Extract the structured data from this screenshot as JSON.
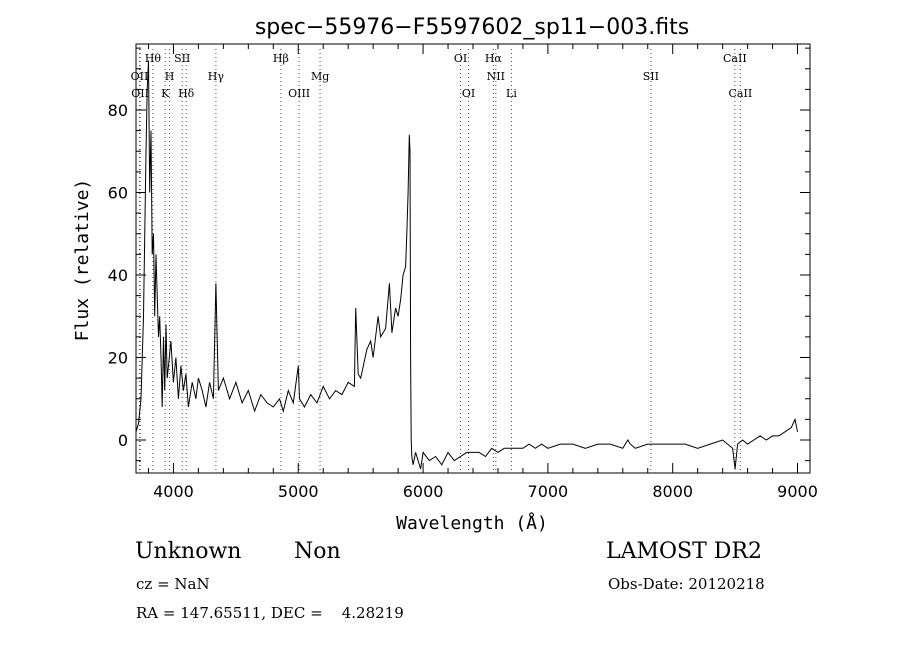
{
  "chart_data": {
    "type": "line",
    "title": "spec−55976−F5597602_sp11−003.fits",
    "xlabel": "Wavelength (Å)",
    "ylabel": "Flux (relative)",
    "xlim": [
      3700,
      9100
    ],
    "ylim": [
      -8,
      96
    ],
    "xticks": [
      4000,
      5000,
      6000,
      7000,
      8000,
      9000
    ],
    "yticks": [
      0,
      20,
      40,
      60,
      80
    ],
    "line_color": "#000000",
    "marker_color": "#ff0000",
    "series": [
      {
        "x": [
          3700,
          3720,
          3740,
          3760,
          3780,
          3790,
          3800,
          3810,
          3820,
          3830,
          3840,
          3850,
          3860,
          3870,
          3880,
          3890,
          3900,
          3910,
          3920,
          3930,
          3940,
          3950,
          3960,
          3980,
          4000,
          4020,
          4040,
          4060,
          4080,
          4100,
          4120,
          4150,
          4180,
          4200,
          4230,
          4260,
          4290,
          4320,
          4340,
          4360,
          4400,
          4450,
          4500,
          4550,
          4600,
          4650,
          4700,
          4750,
          4800,
          4850,
          4880,
          4920,
          4960,
          5000,
          5010,
          5050,
          5100,
          5150,
          5200,
          5250,
          5300,
          5350,
          5400,
          5450,
          5460,
          5480,
          5500,
          5550,
          5580,
          5600,
          5640,
          5660,
          5700,
          5730,
          5750,
          5780,
          5800,
          5820,
          5840,
          5860,
          5870,
          5880,
          5890,
          5895,
          5900,
          5905,
          5910,
          5920,
          5940,
          5960,
          5980,
          6000,
          6050,
          6100,
          6150,
          6200,
          6250,
          6300,
          6350,
          6400,
          6450,
          6500,
          6550,
          6600,
          6650,
          6700,
          6750,
          6800,
          6850,
          6900,
          6950,
          7000,
          7100,
          7200,
          7300,
          7400,
          7500,
          7600,
          7640,
          7660,
          7700,
          7800,
          7900,
          8000,
          8100,
          8200,
          8300,
          8400,
          8480,
          8500,
          8520,
          8560,
          8600,
          8650,
          8700,
          8750,
          8800,
          8850,
          8900,
          8950,
          8980,
          9000
        ],
        "y": [
          2,
          4,
          10,
          30,
          70,
          85,
          92,
          60,
          75,
          45,
          50,
          30,
          45,
          35,
          25,
          30,
          20,
          8,
          25,
          12,
          28,
          15,
          18,
          24,
          14,
          20,
          10,
          18,
          12,
          16,
          8,
          14,
          10,
          15,
          12,
          8,
          14,
          10,
          38,
          12,
          15,
          10,
          14,
          9,
          12,
          7,
          11,
          9,
          8,
          10,
          7,
          12,
          9,
          18,
          10,
          8,
          11,
          9,
          13,
          10,
          12,
          11,
          14,
          13,
          32,
          16,
          15,
          22,
          24,
          20,
          30,
          25,
          27,
          38,
          26,
          32,
          30,
          34,
          40,
          42,
          50,
          60,
          74,
          70,
          20,
          0,
          -4,
          -6,
          -3,
          -5,
          -7,
          -3,
          -5,
          -4,
          -6,
          -3,
          -5,
          -4,
          -3,
          -3,
          -3,
          -4,
          -2,
          -3,
          -2,
          -2,
          -2,
          -2,
          -1,
          -2,
          -1,
          -2,
          -1,
          -1,
          -2,
          -1,
          -1,
          -2,
          0,
          -1,
          -2,
          -1,
          -1,
          -1,
          -1,
          -2,
          -1,
          0,
          -2,
          -7,
          -1,
          0,
          -1,
          0,
          1,
          0,
          1,
          1,
          2,
          3,
          5,
          2
        ]
      }
    ],
    "line_markers": [
      {
        "x": 3728,
        "label": "OII",
        "row": 1
      },
      {
        "x": 3733,
        "label": "OII",
        "row": 2
      },
      {
        "x": 3835,
        "label": "Hθ",
        "row": 0
      },
      {
        "x": 3934,
        "label": "K",
        "row": 2
      },
      {
        "x": 3969,
        "label": "H",
        "row": 1
      },
      {
        "x": 4070,
        "label": "SII",
        "row": 0
      },
      {
        "x": 4102,
        "label": "Hδ",
        "row": 2
      },
      {
        "x": 4340,
        "label": "Hγ",
        "row": 1
      },
      {
        "x": 4861,
        "label": "Hβ",
        "row": 0
      },
      {
        "x": 5007,
        "label": "OIII",
        "row": 2
      },
      {
        "x": 5175,
        "label": "Mg",
        "row": 1
      },
      {
        "x": 6300,
        "label": "OI",
        "row": 0
      },
      {
        "x": 6364,
        "label": "OI",
        "row": 2
      },
      {
        "x": 6563,
        "label": "Hα",
        "row": 0
      },
      {
        "x": 6583,
        "label": "NII",
        "row": 1
      },
      {
        "x": 6708,
        "label": "Li",
        "row": 2
      },
      {
        "x": 7825,
        "label": "SII",
        "row": 1
      },
      {
        "x": 8498,
        "label": "CaII",
        "row": 0
      },
      {
        "x": 8542,
        "label": "CaII",
        "row": 2
      }
    ]
  },
  "info": {
    "class": "Unknown",
    "subclass": "Non",
    "survey": "LAMOST DR2",
    "cz": "cz = NaN",
    "obs_date": "Obs-Date: 20120218",
    "radec": "RA = 147.65511, DEC =    4.28219"
  }
}
